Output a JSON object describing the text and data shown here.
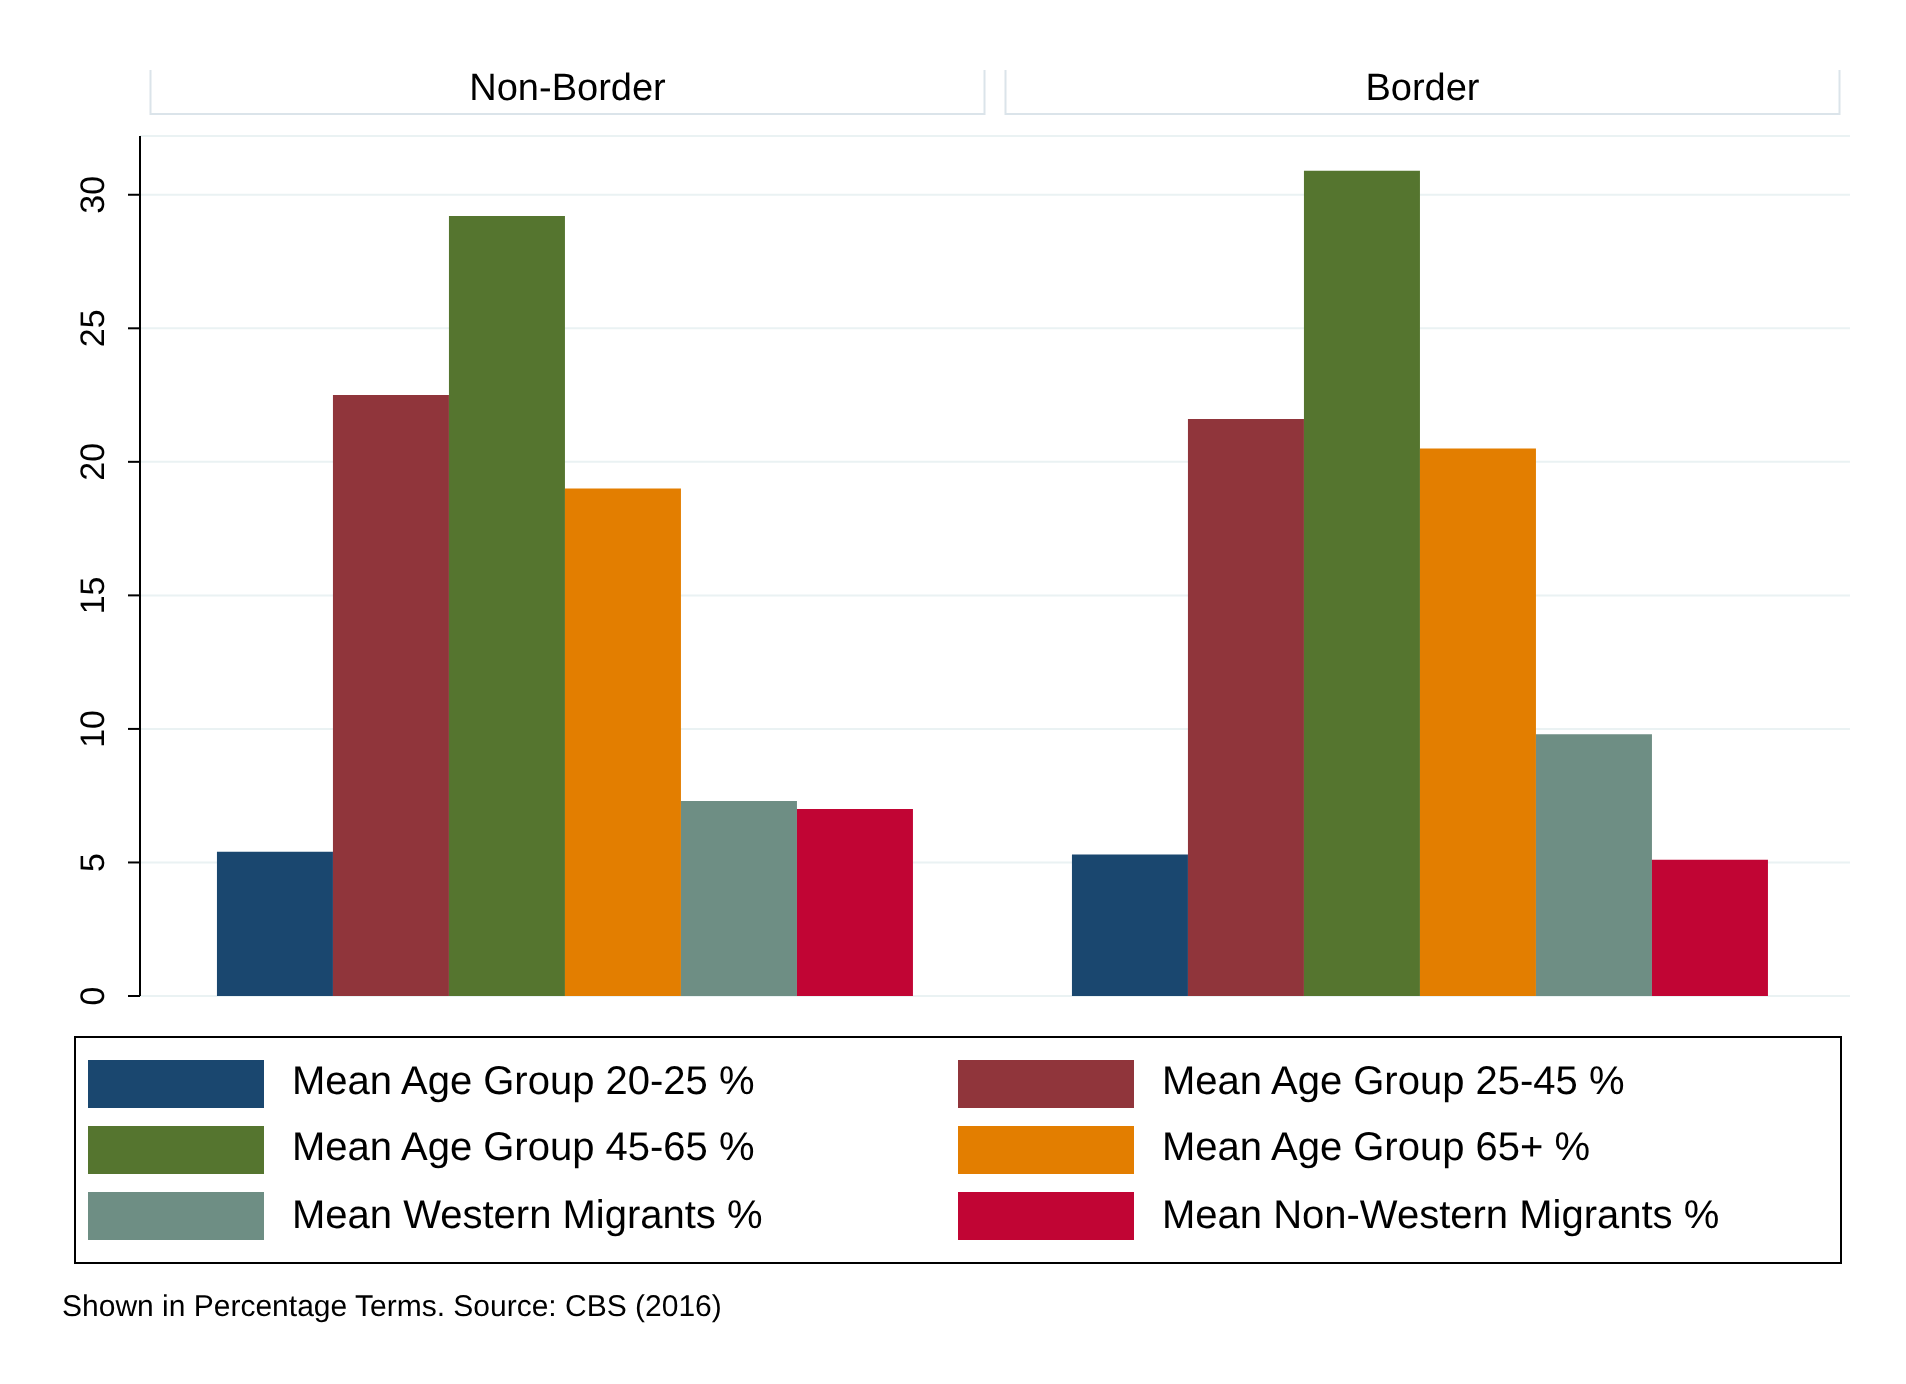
{
  "chart_data": {
    "type": "bar",
    "categories": [
      "Non-Border",
      "Border"
    ],
    "series": [
      {
        "name": "Mean Age Group 20-25 %",
        "color": "#1a476f",
        "values": [
          5.4,
          5.3
        ]
      },
      {
        "name": "Mean Age Group 25-45 %",
        "color": "#90353b",
        "values": [
          22.5,
          21.6
        ]
      },
      {
        "name": "Mean Age Group 45-65 %",
        "color": "#55752f",
        "values": [
          29.2,
          30.9
        ]
      },
      {
        "name": "Mean Age Group 65+ %",
        "color": "#e37e00",
        "values": [
          19.0,
          20.5
        ]
      },
      {
        "name": "Mean Western Migrants %",
        "color": "#6e8e84",
        "values": [
          7.3,
          9.8
        ]
      },
      {
        "name": "Mean Non-Western Migrants %",
        "color": "#c10534",
        "values": [
          7.0,
          5.1
        ]
      }
    ],
    "ylim": [
      0,
      32.2
    ],
    "yticks": [
      0,
      5,
      10,
      15,
      20,
      25,
      30
    ],
    "grid": "y",
    "legend": "bottom",
    "annotations": [
      "Shown in Percentage Terms. Source: CBS (2016)"
    ]
  }
}
